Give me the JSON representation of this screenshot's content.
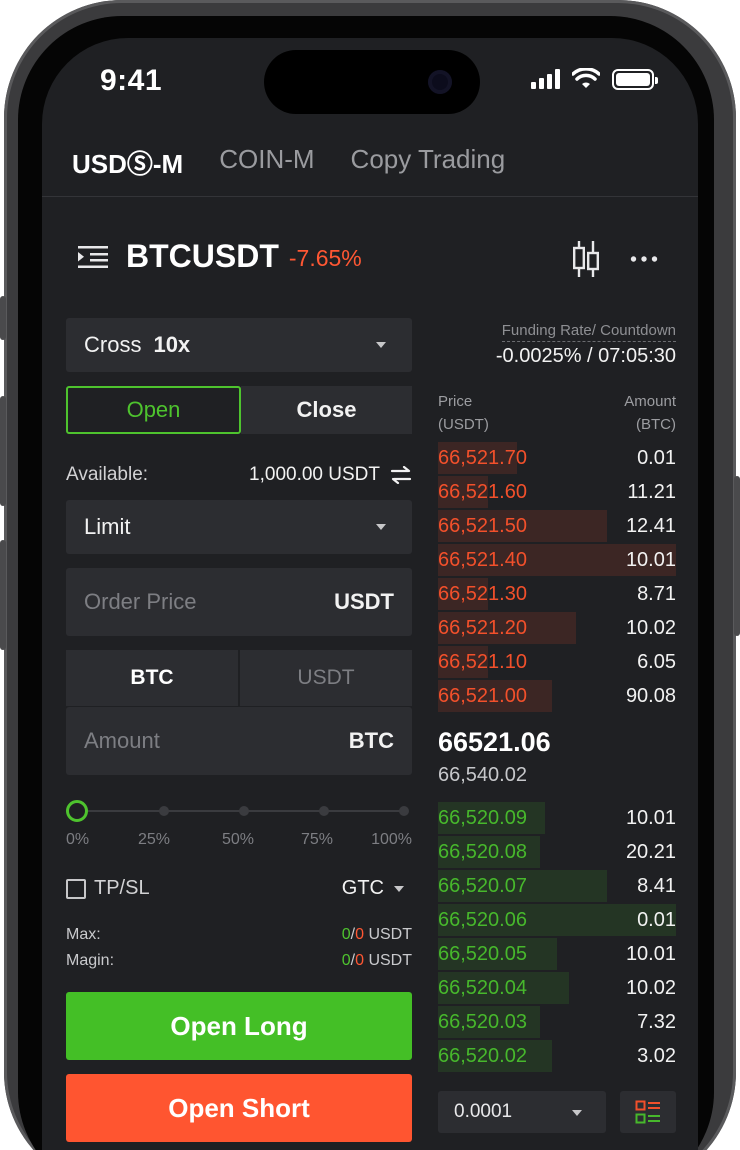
{
  "status_bar": {
    "time": "9:41"
  },
  "top_tabs": [
    {
      "label": "USDⓈ-M",
      "active": true
    },
    {
      "label": "COIN-M",
      "active": false
    },
    {
      "label": "Copy Trading",
      "active": false
    }
  ],
  "pair": {
    "symbol": "BTCUSDT",
    "change": "-7.65%"
  },
  "order_form": {
    "margin_mode": "Cross",
    "leverage": "10x",
    "side_tabs": {
      "open": "Open",
      "close": "Close"
    },
    "available_label": "Available:",
    "available_value": "1,000.00 USDT",
    "order_type": "Limit",
    "price_placeholder": "Order Price",
    "price_unit": "USDT",
    "unit_options": {
      "base": "BTC",
      "quote": "USDT"
    },
    "amount_placeholder": "Amount",
    "amount_unit": "BTC",
    "slider": {
      "value_percent": 0,
      "labels": [
        "0%",
        "25%",
        "50%",
        "75%",
        "100%"
      ]
    },
    "tpsl_label": "TP/SL",
    "time_in_force": "GTC",
    "max_label": "Max:",
    "max_long": "0",
    "max_short": "0",
    "max_unit": "USDT",
    "margin_label": "Magin:",
    "margin_long": "0",
    "margin_short": "0",
    "margin_unit": "USDT",
    "open_long": "Open Long",
    "open_short": "Open Short"
  },
  "order_book": {
    "funding_label": "Funding Rate/ Countdown",
    "funding_value": "-0.0025% / 07:05:30",
    "price_header": [
      "Price",
      "(USDT)"
    ],
    "amount_header": [
      "Amount",
      "(BTC)"
    ],
    "asks": [
      {
        "price": "66,521.70",
        "amount": "0.01",
        "depth": 0.33
      },
      {
        "price": "66,521.60",
        "amount": "11.21",
        "depth": 0.21
      },
      {
        "price": "66,521.50",
        "amount": "12.41",
        "depth": 0.71
      },
      {
        "price": "66,521.40",
        "amount": "10.01",
        "depth": 1.0
      },
      {
        "price": "66,521.30",
        "amount": "8.71",
        "depth": 0.21
      },
      {
        "price": "66,521.20",
        "amount": "10.02",
        "depth": 0.58
      },
      {
        "price": "66,521.10",
        "amount": "6.05",
        "depth": 0.21
      },
      {
        "price": "66,521.00",
        "amount": "90.08",
        "depth": 0.48
      }
    ],
    "last_price": "66521.06",
    "mark_price": "66,540.02",
    "bids": [
      {
        "price": "66,520.09",
        "amount": "10.01",
        "depth": 0.45
      },
      {
        "price": "66,520.08",
        "amount": "20.21",
        "depth": 0.43
      },
      {
        "price": "66,520.07",
        "amount": "8.41",
        "depth": 0.71
      },
      {
        "price": "66,520.06",
        "amount": "0.01",
        "depth": 1.0
      },
      {
        "price": "66,520.05",
        "amount": "10.01",
        "depth": 0.5
      },
      {
        "price": "66,520.04",
        "amount": "10.02",
        "depth": 0.55
      },
      {
        "price": "66,520.03",
        "amount": "7.32",
        "depth": 0.43
      },
      {
        "price": "66,520.02",
        "amount": "3.02",
        "depth": 0.48
      }
    ],
    "precision": "0.0001"
  },
  "colors": {
    "green": "#47b82c",
    "red": "#f2502b",
    "bg": "#1f2023",
    "panel": "#2c2d31"
  },
  "icons": [
    "menu-list-icon",
    "candlestick-icon",
    "more-icon",
    "transfer-icon",
    "order-book-view-icon"
  ]
}
